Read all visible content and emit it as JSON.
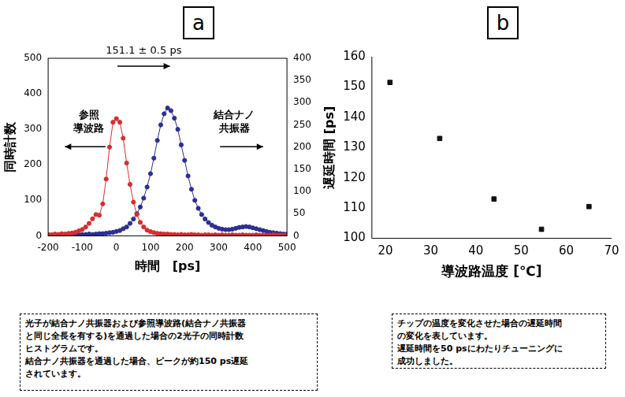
{
  "chart_data": [
    {
      "type": "line",
      "title": "a",
      "x_label": "時間　[ps]",
      "y_label": "同時計数",
      "x": [
        -200,
        -190,
        -180,
        -170,
        -160,
        -150,
        -140,
        -130,
        -120,
        -110,
        -100,
        -90,
        -80,
        -70,
        -60,
        -50,
        -40,
        -30,
        -20,
        -10,
        0,
        10,
        20,
        30,
        40,
        50,
        60,
        70,
        80,
        90,
        100,
        110,
        120,
        130,
        140,
        150,
        160,
        170,
        180,
        190,
        200,
        210,
        220,
        230,
        240,
        250,
        260,
        270,
        280,
        290,
        300,
        310,
        320,
        330,
        340,
        350,
        360,
        370,
        380,
        390,
        400,
        410,
        420,
        430,
        440,
        450,
        460,
        470,
        480,
        490,
        500
      ],
      "series": [
        {
          "color": "#d62f2f",
          "marker": "circle",
          "values": [
            4,
            3,
            5,
            4,
            6,
            5,
            7,
            8,
            10,
            14,
            18,
            25,
            35,
            48,
            60,
            58,
            90,
            160,
            250,
            320,
            330,
            320,
            275,
            205,
            145,
            95,
            60,
            38,
            25,
            16,
            12,
            9,
            7,
            6,
            5,
            5,
            4,
            4,
            3,
            4,
            3,
            3,
            4,
            3,
            3,
            2,
            3,
            3,
            2,
            3,
            2,
            3,
            2,
            2,
            3,
            2,
            2,
            3,
            2,
            2,
            2,
            3,
            2,
            2,
            2,
            2,
            3,
            2,
            2,
            2,
            2
          ]
        },
        {
          "color": "#2b2f95",
          "marker": "circle",
          "axis": "y2",
          "values": [
            2,
            2,
            3,
            2,
            2,
            3,
            2,
            3,
            3,
            2,
            3,
            3,
            4,
            3,
            4,
            5,
            5,
            6,
            7,
            8,
            10,
            12,
            16,
            20,
            28,
            38,
            50,
            65,
            85,
            110,
            140,
            175,
            215,
            250,
            275,
            288,
            282,
            265,
            240,
            205,
            170,
            135,
            105,
            80,
            62,
            48,
            38,
            30,
            24,
            20,
            17,
            15,
            14,
            14,
            15,
            17,
            19,
            20,
            21,
            20,
            18,
            16,
            14,
            12,
            10,
            8,
            7,
            6,
            5,
            4,
            4
          ]
        }
      ],
      "xlim": [
        -200,
        500
      ],
      "xticks": [
        -200,
        -100,
        0,
        100,
        200,
        300,
        400,
        500
      ],
      "ylim": [
        0,
        500
      ],
      "yticks": [
        0,
        100,
        200,
        300,
        400,
        500
      ],
      "y2lim": [
        0,
        400
      ],
      "y2ticks": [
        0,
        50,
        100,
        150,
        200,
        250,
        300,
        350,
        400
      ],
      "grid": false,
      "annotations": [
        "151.1 ± 0.5 ps",
        "参照\n導波路",
        "結合ナノ\n共振器"
      ],
      "caption": [
        "光子が結合ナノ共振器および参照導波路(結合ナノ共振器",
        "と同じ全長を有する)を通過した場合の2光子の同時計数",
        "ヒストグラムです。",
        "結合ナノ共振器を通過した場合、ピークが約150 ps遅延",
        "されています。"
      ]
    },
    {
      "type": "scatter",
      "title": "b",
      "x_label": "導波路温度 [℃]",
      "y_label": "遅延時間 [ps]",
      "x": [
        21,
        32,
        44,
        54.5,
        65
      ],
      "values": [
        151.5,
        133,
        113,
        103,
        110.5
      ],
      "color": "#111111",
      "marker": "square",
      "xlim": [
        17,
        70
      ],
      "xticks": [
        20,
        30,
        40,
        50,
        60,
        70
      ],
      "ylim": [
        100,
        160
      ],
      "yticks": [
        100,
        110,
        120,
        130,
        140,
        150,
        160
      ],
      "grid": false,
      "caption": [
        "チップの温度を変化させた場合の遅延時間",
        "の変化を表しています。",
        "遅延時間を50 psにわたりチューニングに",
        "成功しました。"
      ]
    }
  ]
}
